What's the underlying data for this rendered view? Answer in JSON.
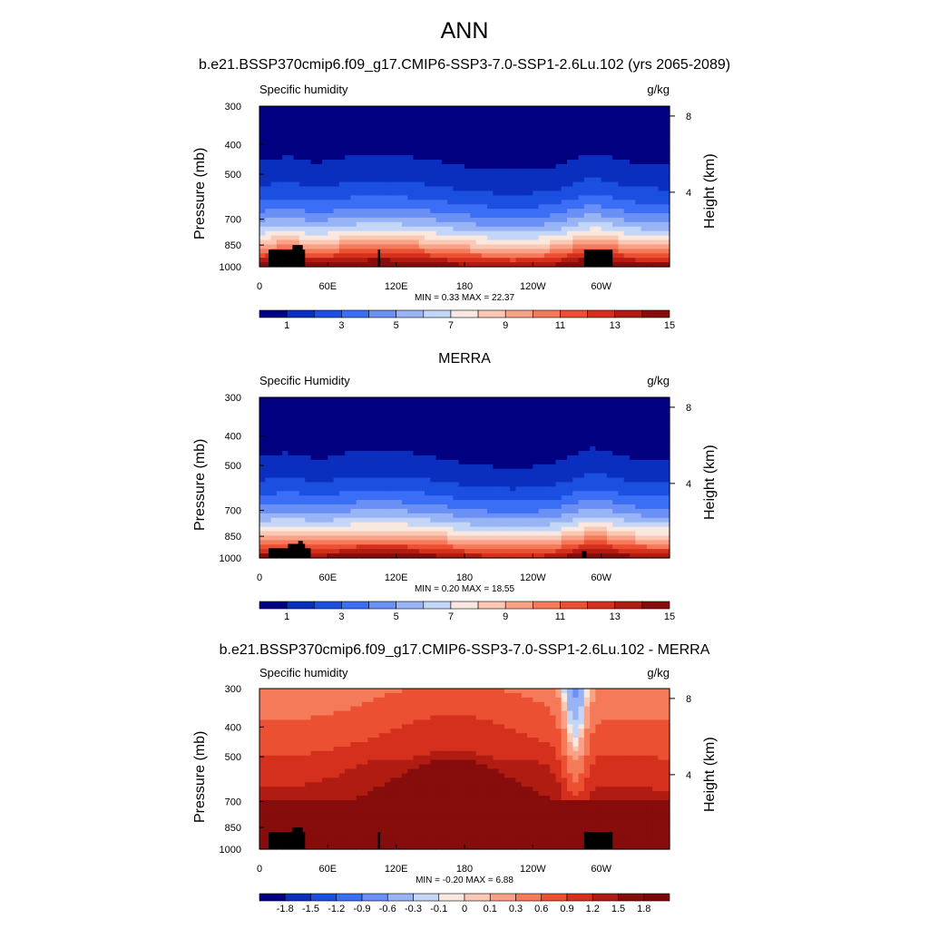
{
  "title": "ANN",
  "chart_data": [
    {
      "type": "heatmap",
      "plot_title": "b.e21.BSSP370cmip6.f09_g17.CMIP6-SSP3-7.0-SSP1-2.6Lu.102 (yrs 2065-2089)",
      "variable_label": "Specific humidity",
      "units": "g/kg",
      "ylabel": "Pressure (mb)",
      "ylabel_right": "Height (km)",
      "x_ticks": [
        "0",
        "60E",
        "120E",
        "180",
        "120W",
        "60W"
      ],
      "x_tick_lon": [
        0,
        60,
        120,
        180,
        240,
        300
      ],
      "xlim": [
        0,
        360
      ],
      "y_ticks": [
        "300",
        "400",
        "500",
        "700",
        "850",
        "1000"
      ],
      "y_tick_values": [
        300,
        400,
        500,
        700,
        850,
        1000
      ],
      "ylim": [
        1000,
        300
      ],
      "right_ticks": [
        "8",
        "4"
      ],
      "right_tick_km": [
        8,
        4
      ],
      "stats": "MIN =   0.33  MAX =  22.37",
      "colorbar_labels": [
        "1",
        "3",
        "5",
        "7",
        "9",
        "11",
        "13",
        "15"
      ],
      "colorbar_levels": [
        0,
        1,
        2,
        3,
        4,
        5,
        6,
        7,
        8,
        9,
        10,
        11,
        12,
        13,
        14,
        15,
        16
      ],
      "colors": [
        "#000080",
        "#0a2fbf",
        "#1a4fe0",
        "#3a6ef5",
        "#6a90f5",
        "#99b4f5",
        "#c4d6f7",
        "#f9e8e0",
        "#fbc8b4",
        "#f9a287",
        "#f47a5a",
        "#ec5032",
        "#d5301d",
        "#b01c12",
        "#870c0c"
      ],
      "field": "model",
      "min": 0.33,
      "max": 22.37
    },
    {
      "type": "heatmap",
      "plot_title": "MERRA",
      "variable_label": "Specific Humidity",
      "units": "g/kg",
      "ylabel": "Pressure (mb)",
      "ylabel_right": "Height (km)",
      "x_ticks": [
        "0",
        "60E",
        "120E",
        "180",
        "120W",
        "60W"
      ],
      "x_tick_lon": [
        0,
        60,
        120,
        180,
        240,
        300
      ],
      "xlim": [
        0,
        360
      ],
      "y_ticks": [
        "300",
        "400",
        "500",
        "700",
        "850",
        "1000"
      ],
      "y_tick_values": [
        300,
        400,
        500,
        700,
        850,
        1000
      ],
      "ylim": [
        1000,
        300
      ],
      "right_ticks": [
        "8",
        "4"
      ],
      "right_tick_km": [
        8,
        4
      ],
      "stats": "MIN =   0.20  MAX =  18.55",
      "colorbar_labels": [
        "1",
        "3",
        "5",
        "7",
        "9",
        "11",
        "13",
        "15"
      ],
      "colorbar_levels": [
        0,
        1,
        2,
        3,
        4,
        5,
        6,
        7,
        8,
        9,
        10,
        11,
        12,
        13,
        14,
        15,
        16
      ],
      "colors": [
        "#000080",
        "#0a2fbf",
        "#1a4fe0",
        "#3a6ef5",
        "#6a90f5",
        "#99b4f5",
        "#c4d6f7",
        "#f9e8e0",
        "#fbc8b4",
        "#f9a287",
        "#f47a5a",
        "#ec5032",
        "#d5301d",
        "#b01c12",
        "#870c0c"
      ],
      "field": "obs",
      "min": 0.2,
      "max": 18.55
    },
    {
      "type": "heatmap",
      "plot_title": "b.e21.BSSP370cmip6.f09_g17.CMIP6-SSP3-7.0-SSP1-2.6Lu.102 - MERRA",
      "variable_label": "Specific humidity",
      "units": "g/kg",
      "ylabel": "Pressure (mb)",
      "ylabel_right": "Height (km)",
      "x_ticks": [
        "0",
        "60E",
        "120E",
        "180",
        "120W",
        "60W"
      ],
      "x_tick_lon": [
        0,
        60,
        120,
        180,
        240,
        300
      ],
      "xlim": [
        0,
        360
      ],
      "y_ticks": [
        "300",
        "400",
        "500",
        "700",
        "850",
        "1000"
      ],
      "y_tick_values": [
        300,
        400,
        500,
        700,
        850,
        1000
      ],
      "ylim": [
        1000,
        300
      ],
      "right_ticks": [
        "8",
        "4"
      ],
      "right_tick_km": [
        8,
        4
      ],
      "stats": "MIN =  -0.20  MAX =   6.88",
      "colorbar_labels": [
        "-1.8",
        "-1.5",
        "-1.2",
        "-0.9",
        "-0.6",
        "-0.3",
        "-0.1",
        "0",
        "0.1",
        "0.3",
        "0.6",
        "0.9",
        "1.2",
        "1.5",
        "1.8"
      ],
      "colorbar_levels": [
        -1.8,
        -1.5,
        -1.2,
        -0.9,
        -0.6,
        -0.3,
        -0.1,
        0,
        0.1,
        0.3,
        0.6,
        0.9,
        1.2,
        1.5,
        1.8
      ],
      "colors": [
        "#000080",
        "#0a2fbf",
        "#1a4fe0",
        "#3a6ef5",
        "#6a90f5",
        "#99b4f5",
        "#c4d6f7",
        "#f9e8e0",
        "#fbc8b4",
        "#f9a287",
        "#f47a5a",
        "#ec5032",
        "#d5301d",
        "#b01c12",
        "#870c0c",
        "#7a0606"
      ],
      "field": "diff",
      "min": -0.2,
      "max": 6.88
    }
  ]
}
